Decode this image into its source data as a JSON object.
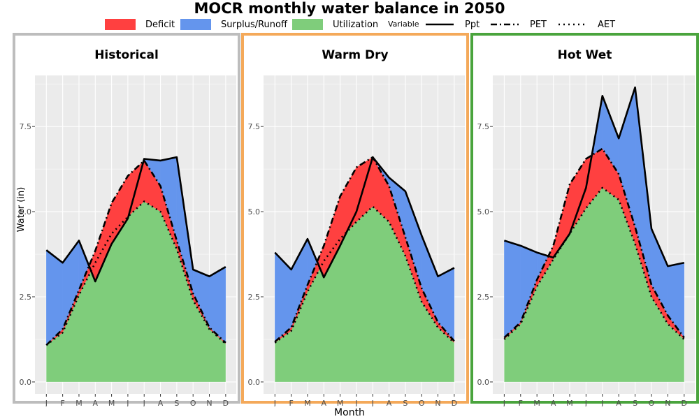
{
  "title": "MOCR monthly water balance in 2050",
  "legend": {
    "fill_items": [
      {
        "label": "Deficit",
        "color": "#ff4040"
      },
      {
        "label": "Surplus/Runoff",
        "color": "#6495ed"
      },
      {
        "label": "Utilization",
        "color": "#7fcd7b"
      }
    ],
    "variable_title": "Variable",
    "line_items": [
      {
        "label": "Ppt",
        "style": "solid"
      },
      {
        "label": "PET",
        "style": "dashed"
      },
      {
        "label": "AET",
        "style": "dotted"
      }
    ]
  },
  "xlabel": "Month",
  "ylabel": "Water (in)",
  "chart_data": [
    {
      "type": "area",
      "title": "Historical",
      "border_color": "#bdbdbd",
      "categories": [
        "J",
        "F",
        "M",
        "A",
        "M",
        "J",
        "J",
        "A",
        "S",
        "O",
        "N",
        "D"
      ],
      "ylim": [
        -0.35,
        9.0
      ],
      "yticks": [
        0.0,
        2.5,
        5.0,
        7.5
      ],
      "series": [
        {
          "name": "Ppt",
          "values": [
            3.87,
            3.5,
            4.15,
            2.95,
            4.05,
            4.8,
            6.55,
            6.5,
            6.6,
            3.3,
            3.1,
            3.38
          ]
        },
        {
          "name": "PET",
          "values": [
            1.08,
            1.55,
            2.7,
            3.85,
            5.25,
            6.05,
            6.5,
            5.75,
            4.15,
            2.6,
            1.6,
            1.15
          ]
        },
        {
          "name": "AET",
          "values": [
            1.08,
            1.45,
            2.55,
            3.5,
            4.35,
            4.85,
            5.3,
            5.0,
            3.9,
            2.4,
            1.55,
            1.12
          ]
        }
      ]
    },
    {
      "type": "area",
      "title": "Warm Dry",
      "border_color": "#f4a95a",
      "categories": [
        "J",
        "F",
        "M",
        "A",
        "M",
        "J",
        "J",
        "A",
        "S",
        "O",
        "N",
        "D"
      ],
      "ylim": [
        -0.35,
        9.0
      ],
      "yticks": [
        0.0,
        2.5,
        5.0,
        7.5
      ],
      "series": [
        {
          "name": "Ppt",
          "values": [
            3.8,
            3.3,
            4.2,
            3.07,
            4.0,
            5.0,
            6.6,
            6.0,
            5.6,
            4.3,
            3.1,
            3.35
          ]
        },
        {
          "name": "PET",
          "values": [
            1.18,
            1.6,
            2.85,
            4.0,
            5.45,
            6.3,
            6.6,
            5.75,
            4.25,
            2.75,
            1.75,
            1.2
          ]
        },
        {
          "name": "AET",
          "values": [
            1.15,
            1.5,
            2.65,
            3.55,
            4.2,
            4.7,
            5.15,
            4.7,
            3.7,
            2.35,
            1.6,
            1.15
          ]
        }
      ]
    },
    {
      "type": "area",
      "title": "Hot Wet",
      "border_color": "#4aa43d",
      "categories": [
        "J",
        "F",
        "M",
        "A",
        "M",
        "J",
        "J",
        "A",
        "S",
        "O",
        "N",
        "D"
      ],
      "ylim": [
        -0.35,
        9.0
      ],
      "yticks": [
        0.0,
        2.5,
        5.0,
        7.5
      ],
      "series": [
        {
          "name": "Ppt",
          "values": [
            4.15,
            4.0,
            3.8,
            3.65,
            4.35,
            5.7,
            8.4,
            7.15,
            8.65,
            4.5,
            3.4,
            3.5
          ]
        },
        {
          "name": "PET",
          "values": [
            1.3,
            1.75,
            3.0,
            4.0,
            5.8,
            6.55,
            6.85,
            6.1,
            4.55,
            2.85,
            1.95,
            1.3
          ]
        },
        {
          "name": "AET",
          "values": [
            1.25,
            1.7,
            2.8,
            3.6,
            4.35,
            5.1,
            5.7,
            5.35,
            4.05,
            2.5,
            1.7,
            1.25
          ]
        }
      ]
    }
  ]
}
